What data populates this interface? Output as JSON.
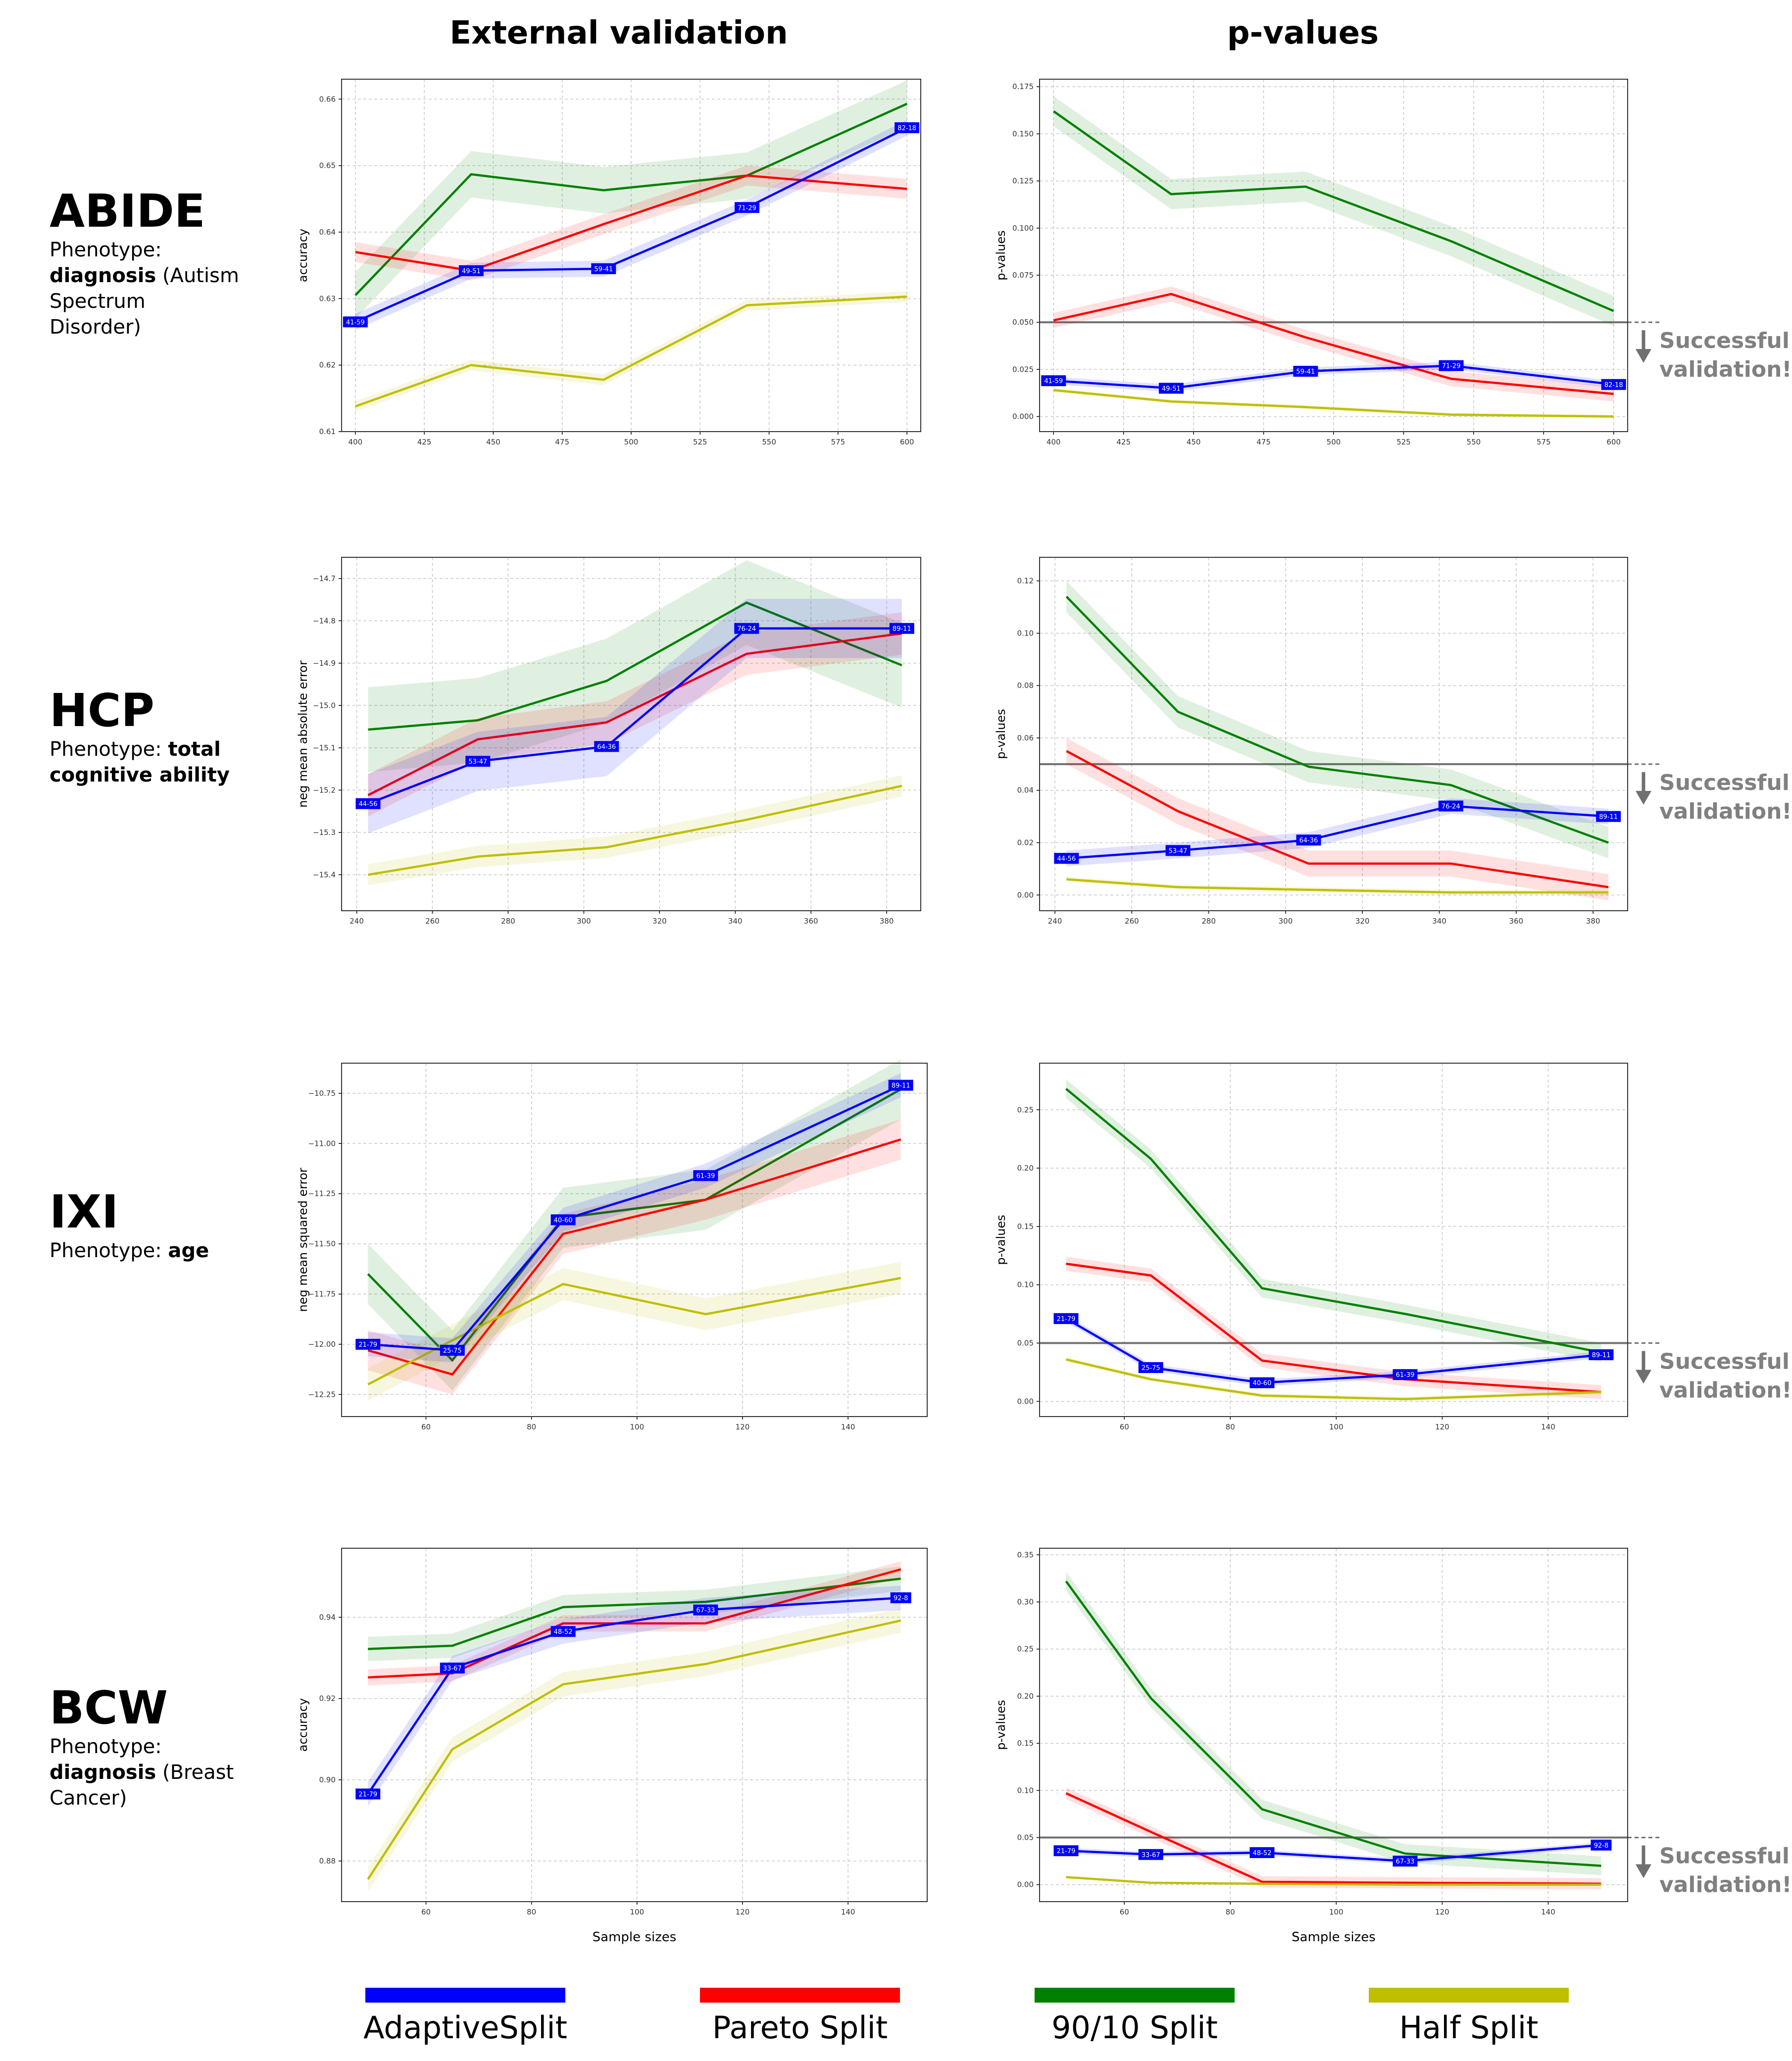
{
  "headers": {
    "external": "External validation",
    "pvalues": "p-values"
  },
  "success_text": [
    "Successful",
    "validation!"
  ],
  "colors": {
    "AdaptiveSplit": "#0000ff",
    "Pareto Split": "#ff0000",
    "90/10 Split": "#008000",
    "Half Split": "#bfbf00"
  },
  "legend": [
    "AdaptiveSplit",
    "Pareto Split",
    "90/10 Split",
    "Half Split"
  ],
  "datasets": [
    {
      "name": "ABIDE",
      "desc_lines": [
        [
          {
            "t": "Phenotype:",
            "b": false
          }
        ],
        [
          {
            "t": "diagnosis",
            "b": true
          },
          {
            "t": " (Autism",
            "b": false
          }
        ],
        [
          {
            "t": "Spectrum",
            "b": false
          }
        ],
        [
          {
            "t": "Disorder)",
            "b": false
          }
        ]
      ]
    },
    {
      "name": "HCP",
      "desc_lines": [
        [
          {
            "t": "Phenotype: ",
            "b": false
          },
          {
            "t": "total",
            "b": true
          }
        ],
        [
          {
            "t": "cognitive ability",
            "b": true
          }
        ]
      ]
    },
    {
      "name": "IXI",
      "desc_lines": [
        [
          {
            "t": "Phenotype: ",
            "b": false
          },
          {
            "t": "age",
            "b": true
          }
        ]
      ]
    },
    {
      "name": "BCW",
      "desc_lines": [
        [
          {
            "t": "Phenotype:",
            "b": false
          }
        ],
        [
          {
            "t": "diagnosis",
            "b": true
          },
          {
            "t": " (Breast",
            "b": false
          }
        ],
        [
          {
            "t": "Cancer)",
            "b": false
          }
        ]
      ]
    }
  ],
  "chart_data": [
    {
      "type": "line",
      "dataset": "ABIDE",
      "panel": "external",
      "ylabel": "accuracy",
      "xlabel": "",
      "xlim": [
        395,
        605
      ],
      "ylim": [
        0.61,
        0.663
      ],
      "xticks": [
        400,
        425,
        450,
        475,
        500,
        525,
        550,
        575,
        600
      ],
      "yticks": [
        0.61,
        0.62,
        0.63,
        0.64,
        0.65,
        0.66
      ],
      "ytick_labels": [
        "0.61",
        "0.62",
        "0.63",
        "0.64",
        "0.65",
        "0.66"
      ],
      "series": [
        {
          "key": "90/10 Split",
          "x": [
            400,
            442,
            490,
            542,
            600
          ],
          "y": [
            0.6305,
            0.6487,
            0.6463,
            0.6485,
            0.6593
          ],
          "band": 0.0035
        },
        {
          "key": "Pareto Split",
          "x": [
            400,
            442,
            490,
            542,
            600
          ],
          "y": [
            0.637,
            0.6342,
            0.6412,
            0.6485,
            0.6465
          ],
          "band": 0.0015
        },
        {
          "key": "AdaptiveSplit",
          "x": [
            400,
            442,
            490,
            542,
            600
          ],
          "y": [
            0.6265,
            0.6342,
            0.6345,
            0.6437,
            0.6557
          ],
          "band": 0.0012
        },
        {
          "key": "Half Split",
          "x": [
            400,
            442,
            490,
            542,
            600
          ],
          "y": [
            0.6138,
            0.62,
            0.6178,
            0.629,
            0.6303
          ],
          "band": 0.0008
        }
      ],
      "point_labels": {
        "series": "AdaptiveSplit",
        "labels": [
          "41-59",
          "49-51",
          "59-41",
          "71-29",
          "82-18"
        ]
      }
    },
    {
      "type": "line",
      "dataset": "ABIDE",
      "panel": "pvalues",
      "ylabel": "p-values",
      "xlabel": "",
      "xlim": [
        395,
        605
      ],
      "ylim": [
        -0.008,
        0.179
      ],
      "xticks": [
        400,
        425,
        450,
        475,
        500,
        525,
        550,
        575,
        600
      ],
      "yticks": [
        0,
        0.025,
        0.05,
        0.075,
        0.1,
        0.125,
        0.15,
        0.175
      ],
      "ytick_labels": [
        "0.000",
        "0.025",
        "0.050",
        "0.075",
        "0.100",
        "0.125",
        "0.150",
        "0.175"
      ],
      "threshold": 0.05,
      "series": [
        {
          "key": "90/10 Split",
          "x": [
            400,
            442,
            490,
            542,
            600
          ],
          "y": [
            0.162,
            0.118,
            0.122,
            0.093,
            0.056
          ],
          "band": 0.008
        },
        {
          "key": "Pareto Split",
          "x": [
            400,
            442,
            490,
            542,
            600
          ],
          "y": [
            0.051,
            0.065,
            0.042,
            0.02,
            0.012
          ],
          "band": 0.004
        },
        {
          "key": "AdaptiveSplit",
          "x": [
            400,
            442,
            490,
            542,
            600
          ],
          "y": [
            0.019,
            0.015,
            0.024,
            0.027,
            0.017
          ],
          "band": 0.002
        },
        {
          "key": "Half Split",
          "x": [
            400,
            442,
            490,
            542,
            600
          ],
          "y": [
            0.014,
            0.008,
            0.005,
            0.001,
            0.0
          ],
          "band": 0.001
        }
      ],
      "point_labels": {
        "series": "AdaptiveSplit",
        "labels": [
          "41-59",
          "49-51",
          "59-41",
          "71-29",
          "82-18"
        ]
      }
    },
    {
      "type": "line",
      "dataset": "HCP",
      "panel": "external",
      "ylabel": "neg mean absolute error",
      "xlabel": "",
      "xlim": [
        236,
        389
      ],
      "ylim": [
        -15.485,
        -14.65
      ],
      "xticks": [
        240,
        260,
        280,
        300,
        320,
        340,
        360,
        380
      ],
      "yticks": [
        -15.4,
        -15.3,
        -15.2,
        -15.1,
        -15.0,
        -14.9,
        -14.8,
        -14.7
      ],
      "ytick_labels": [
        "−15.4",
        "−15.3",
        "−15.2",
        "−15.1",
        "−15.0",
        "−14.9",
        "−14.8",
        "−14.7"
      ],
      "series": [
        {
          "key": "90/10 Split",
          "x": [
            243,
            272,
            306,
            343,
            384
          ],
          "y": [
            -15.057,
            -15.035,
            -14.942,
            -14.757,
            -14.905
          ],
          "band": 0.1
        },
        {
          "key": "Pareto Split",
          "x": [
            243,
            272,
            306,
            343,
            384
          ],
          "y": [
            -15.212,
            -15.08,
            -15.04,
            -14.878,
            -14.83
          ],
          "band": 0.05
        },
        {
          "key": "AdaptiveSplit",
          "x": [
            243,
            272,
            306,
            343,
            384
          ],
          "y": [
            -15.232,
            -15.132,
            -15.097,
            -14.818,
            -14.818
          ],
          "band": 0.07
        },
        {
          "key": "Half Split",
          "x": [
            243,
            272,
            306,
            343,
            384
          ],
          "y": [
            -15.4,
            -15.357,
            -15.335,
            -15.27,
            -15.19
          ],
          "band": 0.025
        }
      ],
      "point_labels": {
        "series": "AdaptiveSplit",
        "labels": [
          "44-56",
          "53-47",
          "64-36",
          "76-24",
          "89-11"
        ]
      }
    },
    {
      "type": "line",
      "dataset": "HCP",
      "panel": "pvalues",
      "ylabel": "p-values",
      "xlabel": "",
      "xlim": [
        236,
        389
      ],
      "ylim": [
        -0.006,
        0.129
      ],
      "xticks": [
        240,
        260,
        280,
        300,
        320,
        340,
        360,
        380
      ],
      "yticks": [
        0,
        0.02,
        0.04,
        0.06,
        0.08,
        0.1,
        0.12
      ],
      "ytick_labels": [
        "0.00",
        "0.02",
        "0.04",
        "0.06",
        "0.08",
        "0.10",
        "0.12"
      ],
      "threshold": 0.05,
      "series": [
        {
          "key": "90/10 Split",
          "x": [
            243,
            272,
            306,
            343,
            384
          ],
          "y": [
            0.114,
            0.07,
            0.049,
            0.042,
            0.02
          ],
          "band": 0.006
        },
        {
          "key": "Pareto Split",
          "x": [
            243,
            272,
            306,
            343,
            384
          ],
          "y": [
            0.055,
            0.032,
            0.012,
            0.012,
            0.003
          ],
          "band": 0.005
        },
        {
          "key": "AdaptiveSplit",
          "x": [
            243,
            272,
            306,
            343,
            384
          ],
          "y": [
            0.014,
            0.017,
            0.021,
            0.034,
            0.03
          ],
          "band": 0.003
        },
        {
          "key": "Half Split",
          "x": [
            243,
            272,
            306,
            343,
            384
          ],
          "y": [
            0.006,
            0.003,
            0.002,
            0.001,
            0.001
          ],
          "band": 0.001
        }
      ],
      "point_labels": {
        "series": "AdaptiveSplit",
        "labels": [
          "44-56",
          "53-47",
          "64-36",
          "76-24",
          "89-11"
        ]
      }
    },
    {
      "type": "line",
      "dataset": "IXI",
      "panel": "external",
      "ylabel": "neg mean squared error",
      "xlabel": "",
      "xlim": [
        44,
        155
      ],
      "ylim": [
        -12.36,
        -10.6
      ],
      "xticks": [
        60,
        80,
        100,
        120,
        140
      ],
      "yticks": [
        -12.25,
        -12.0,
        -11.75,
        -11.5,
        -11.25,
        -11.0,
        -10.75
      ],
      "ytick_labels": [
        "−12.25",
        "−12.00",
        "−11.75",
        "−11.50",
        "−11.25",
        "−11.00",
        "−10.75"
      ],
      "series": [
        {
          "key": "90/10 Split",
          "x": [
            49,
            65,
            86,
            113,
            150
          ],
          "y": [
            -11.65,
            -12.08,
            -11.37,
            -11.28,
            -10.73
          ],
          "band": 0.15
        },
        {
          "key": "Pareto Split",
          "x": [
            49,
            65,
            86,
            113,
            150
          ],
          "y": [
            -12.03,
            -12.15,
            -11.45,
            -11.28,
            -10.98
          ],
          "band": 0.1
        },
        {
          "key": "AdaptiveSplit",
          "x": [
            49,
            65,
            86,
            113,
            150
          ],
          "y": [
            -12.0,
            -12.03,
            -11.38,
            -11.16,
            -10.71
          ],
          "band": 0.06
        },
        {
          "key": "Half Split",
          "x": [
            49,
            65,
            86,
            113,
            150
          ],
          "y": [
            -12.2,
            -11.98,
            -11.7,
            -11.85,
            -11.67
          ],
          "band": 0.08
        }
      ],
      "point_labels": {
        "series": "AdaptiveSplit",
        "labels": [
          "21-79",
          "25-75",
          "40-60",
          "61-39",
          "89-11"
        ]
      }
    },
    {
      "type": "line",
      "dataset": "IXI",
      "panel": "pvalues",
      "ylabel": "p-values",
      "xlabel": "",
      "xlim": [
        44,
        155
      ],
      "ylim": [
        -0.013,
        0.29
      ],
      "xticks": [
        60,
        80,
        100,
        120,
        140
      ],
      "yticks": [
        0,
        0.05,
        0.1,
        0.15,
        0.2,
        0.25
      ],
      "ytick_labels": [
        "0.00",
        "0.05",
        "0.10",
        "0.15",
        "0.20",
        "0.25"
      ],
      "threshold": 0.05,
      "series": [
        {
          "key": "90/10 Split",
          "x": [
            49,
            65,
            86,
            113,
            150
          ],
          "y": [
            0.268,
            0.208,
            0.097,
            0.075,
            0.042
          ],
          "band": 0.008
        },
        {
          "key": "Pareto Split",
          "x": [
            49,
            65,
            86,
            113,
            150
          ],
          "y": [
            0.118,
            0.108,
            0.035,
            0.019,
            0.008
          ],
          "band": 0.006
        },
        {
          "key": "AdaptiveSplit",
          "x": [
            49,
            65,
            86,
            113,
            150
          ],
          "y": [
            0.071,
            0.029,
            0.016,
            0.023,
            0.04
          ],
          "band": 0.003
        },
        {
          "key": "Half Split",
          "x": [
            49,
            65,
            86,
            113,
            150
          ],
          "y": [
            0.036,
            0.019,
            0.005,
            0.002,
            0.008
          ],
          "band": 0.002
        }
      ],
      "point_labels": {
        "series": "AdaptiveSplit",
        "labels": [
          "21-79",
          "25-75",
          "40-60",
          "61-39",
          "89-11"
        ]
      }
    },
    {
      "type": "line",
      "dataset": "BCW",
      "panel": "external",
      "ylabel": "accuracy",
      "xlabel": "Sample sizes",
      "xlim": [
        44,
        155
      ],
      "ylim": [
        0.87,
        0.957
      ],
      "xticks": [
        60,
        80,
        100,
        120,
        140
      ],
      "yticks": [
        0.88,
        0.9,
        0.92,
        0.94
      ],
      "ytick_labels": [
        "0.88",
        "0.90",
        "0.92",
        "0.94"
      ],
      "series": [
        {
          "key": "90/10 Split",
          "x": [
            49,
            65,
            86,
            113,
            150
          ],
          "y": [
            0.9322,
            0.933,
            0.9425,
            0.9438,
            0.9495
          ],
          "band": 0.003
        },
        {
          "key": "Pareto Split",
          "x": [
            49,
            65,
            86,
            113,
            150
          ],
          "y": [
            0.9252,
            0.9262,
            0.9385,
            0.9385,
            0.9518
          ],
          "band": 0.002
        },
        {
          "key": "AdaptiveSplit",
          "x": [
            49,
            65,
            86,
            113,
            150
          ],
          "y": [
            0.8965,
            0.9275,
            0.9365,
            0.9418,
            0.9448
          ],
          "band": 0.003
        },
        {
          "key": "Half Split",
          "x": [
            49,
            65,
            86,
            113,
            150
          ],
          "y": [
            0.8755,
            0.9075,
            0.9235,
            0.9285,
            0.9392
          ],
          "band": 0.003
        }
      ],
      "point_labels": {
        "series": "AdaptiveSplit",
        "labels": [
          "21-79",
          "33-67",
          "48-52",
          "67-33",
          "92-8"
        ]
      }
    },
    {
      "type": "line",
      "dataset": "BCW",
      "panel": "pvalues",
      "ylabel": "p-values",
      "xlabel": "Sample sizes",
      "xlim": [
        44,
        155
      ],
      "ylim": [
        -0.018,
        0.357
      ],
      "xticks": [
        60,
        80,
        100,
        120,
        140
      ],
      "yticks": [
        0,
        0.05,
        0.1,
        0.15,
        0.2,
        0.25,
        0.3,
        0.35
      ],
      "ytick_labels": [
        "0.00",
        "0.05",
        "0.10",
        "0.15",
        "0.20",
        "0.25",
        "0.30",
        "0.35"
      ],
      "threshold": 0.05,
      "series": [
        {
          "key": "90/10 Split",
          "x": [
            49,
            65,
            86,
            113,
            150
          ],
          "y": [
            0.322,
            0.198,
            0.08,
            0.033,
            0.02
          ],
          "band": 0.01
        },
        {
          "key": "Pareto Split",
          "x": [
            49,
            65,
            86,
            113,
            150
          ],
          "y": [
            0.097,
            0.056,
            0.003,
            0.002,
            0.001
          ],
          "band": 0.006
        },
        {
          "key": "AdaptiveSplit",
          "x": [
            49,
            65,
            86,
            113,
            150
          ],
          "y": [
            0.036,
            0.032,
            0.034,
            0.025,
            0.042
          ],
          "band": 0.003
        },
        {
          "key": "Half Split",
          "x": [
            49,
            65,
            86,
            113,
            150
          ],
          "y": [
            0.008,
            0.002,
            0.001,
            0.0,
            0.0
          ],
          "band": 0.001
        }
      ],
      "point_labels": {
        "series": "AdaptiveSplit",
        "labels": [
          "21-79",
          "33-67",
          "48-52",
          "67-33",
          "92-8"
        ]
      }
    }
  ]
}
